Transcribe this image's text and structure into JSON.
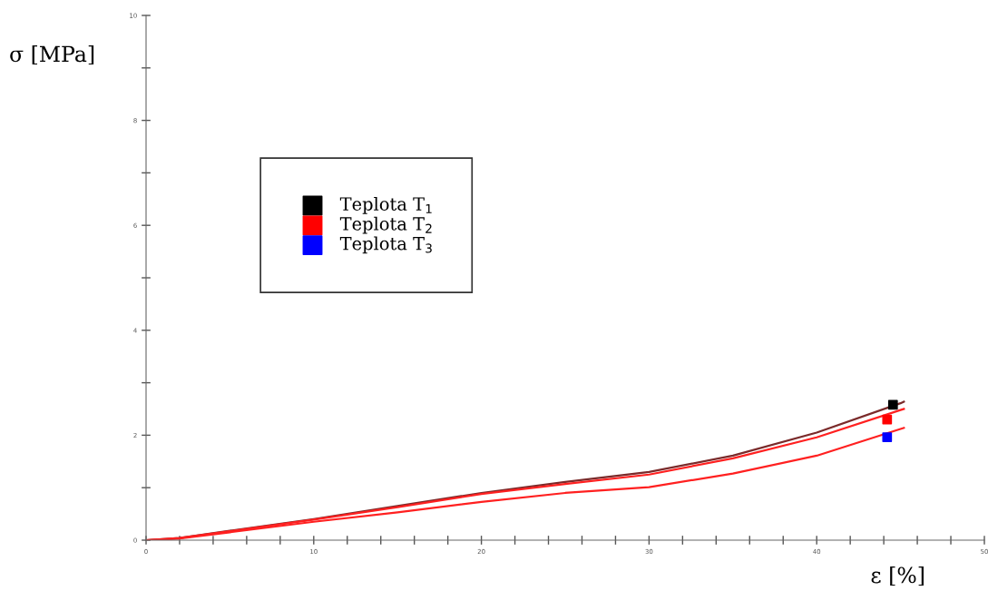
{
  "chart_data": {
    "type": "line",
    "xlabel": "ε [%]",
    "ylabel": "σ [MPa]",
    "xlim": [
      0,
      50
    ],
    "ylim": [
      0,
      10
    ],
    "xticks": [
      0,
      {
        "value": 2,
        "label": null
      },
      {
        "value": 4,
        "label": null
      },
      {
        "value": 6,
        "label": null
      },
      {
        "value": 8,
        "label": null
      },
      10,
      {
        "value": 12,
        "label": null
      },
      {
        "value": 14,
        "label": null
      },
      {
        "value": 16,
        "label": null
      },
      {
        "value": 18,
        "label": null
      },
      20,
      {
        "value": 22,
        "label": null
      },
      {
        "value": 24,
        "label": null
      },
      {
        "value": 26,
        "label": null
      },
      {
        "value": 28,
        "label": null
      },
      30,
      {
        "value": 32,
        "label": null
      },
      {
        "value": 34,
        "label": null
      },
      {
        "value": 36,
        "label": null
      },
      {
        "value": 38,
        "label": null
      },
      40,
      {
        "value": 42,
        "label": null
      },
      {
        "value": 44,
        "label": null
      },
      {
        "value": 46,
        "label": null
      },
      {
        "value": 48,
        "label": null
      },
      50
    ],
    "yticks": [
      0,
      {
        "value": 1,
        "label": null
      },
      2,
      {
        "value": 3,
        "label": null
      },
      4,
      {
        "value": 5,
        "label": null
      },
      6,
      {
        "value": 7,
        "label": null
      },
      8,
      {
        "value": 9,
        "label": null
      },
      10
    ],
    "grid": false,
    "legend": "top left",
    "series": [
      {
        "color": "#7a2a2a",
        "x": [
          0,
          2,
          5,
          10,
          15,
          20,
          25,
          30,
          35,
          40,
          45,
          45.2
        ],
        "values": [
          0,
          0.04,
          0.18,
          0.4,
          0.65,
          0.9,
          1.11,
          1.3,
          1.61,
          2.05,
          2.61,
          2.64
        ]
      },
      {
        "color": "#ff2020",
        "x": [
          0,
          2,
          5,
          10,
          15,
          20,
          25,
          30,
          35,
          40,
          45,
          45.2
        ],
        "values": [
          0,
          0.04,
          0.17,
          0.39,
          0.63,
          0.88,
          1.07,
          1.25,
          1.56,
          1.96,
          2.48,
          2.5
        ]
      },
      {
        "color": "#ff2020",
        "x": [
          0,
          2,
          5,
          10,
          15,
          20,
          25,
          30,
          35,
          40,
          45,
          45.2
        ],
        "values": [
          0,
          0.03,
          0.15,
          0.35,
          0.53,
          0.73,
          0.9,
          1.01,
          1.27,
          1.61,
          2.12,
          2.14
        ]
      },
      {
        "type": "scatter",
        "name": "Teplota T$_{1}$",
        "color": "#000000",
        "marker": "square",
        "x": [
          44.55
        ],
        "values": [
          2.58
        ]
      },
      {
        "type": "scatter",
        "name": "Teplota T$_{2}$",
        "color": "#ff0000",
        "marker": "square",
        "x": [
          44.2
        ],
        "values": [
          2.3
        ]
      },
      {
        "type": "scatter",
        "name": "Teplota T$_{3}$",
        "color": "#0000ff",
        "marker": "square",
        "x": [
          44.2
        ],
        "values": [
          1.96
        ]
      }
    ]
  }
}
